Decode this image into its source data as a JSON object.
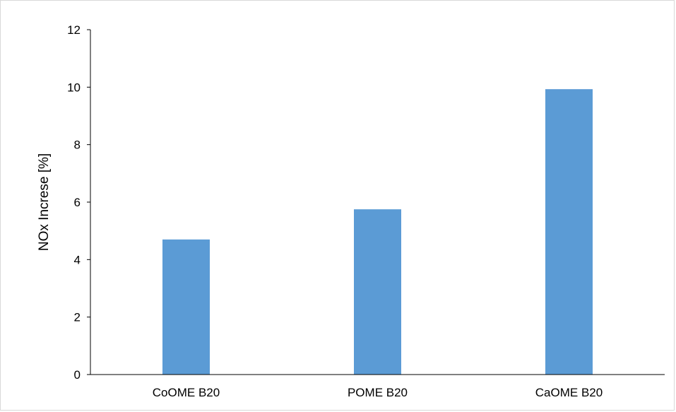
{
  "chart_data": {
    "type": "bar",
    "title": "",
    "xlabel": "",
    "ylabel": "NOx Increse [%]",
    "categories": [
      "CoOME B20",
      "POME B20",
      "CaOME B20"
    ],
    "values": [
      4.7,
      5.75,
      9.93
    ],
    "ylim": [
      0,
      12
    ],
    "yticks": [
      0,
      2,
      4,
      6,
      8,
      10,
      12
    ],
    "grid": false,
    "legend": "none",
    "bar_color": "#5b9bd5",
    "axis_color": "#000000"
  }
}
